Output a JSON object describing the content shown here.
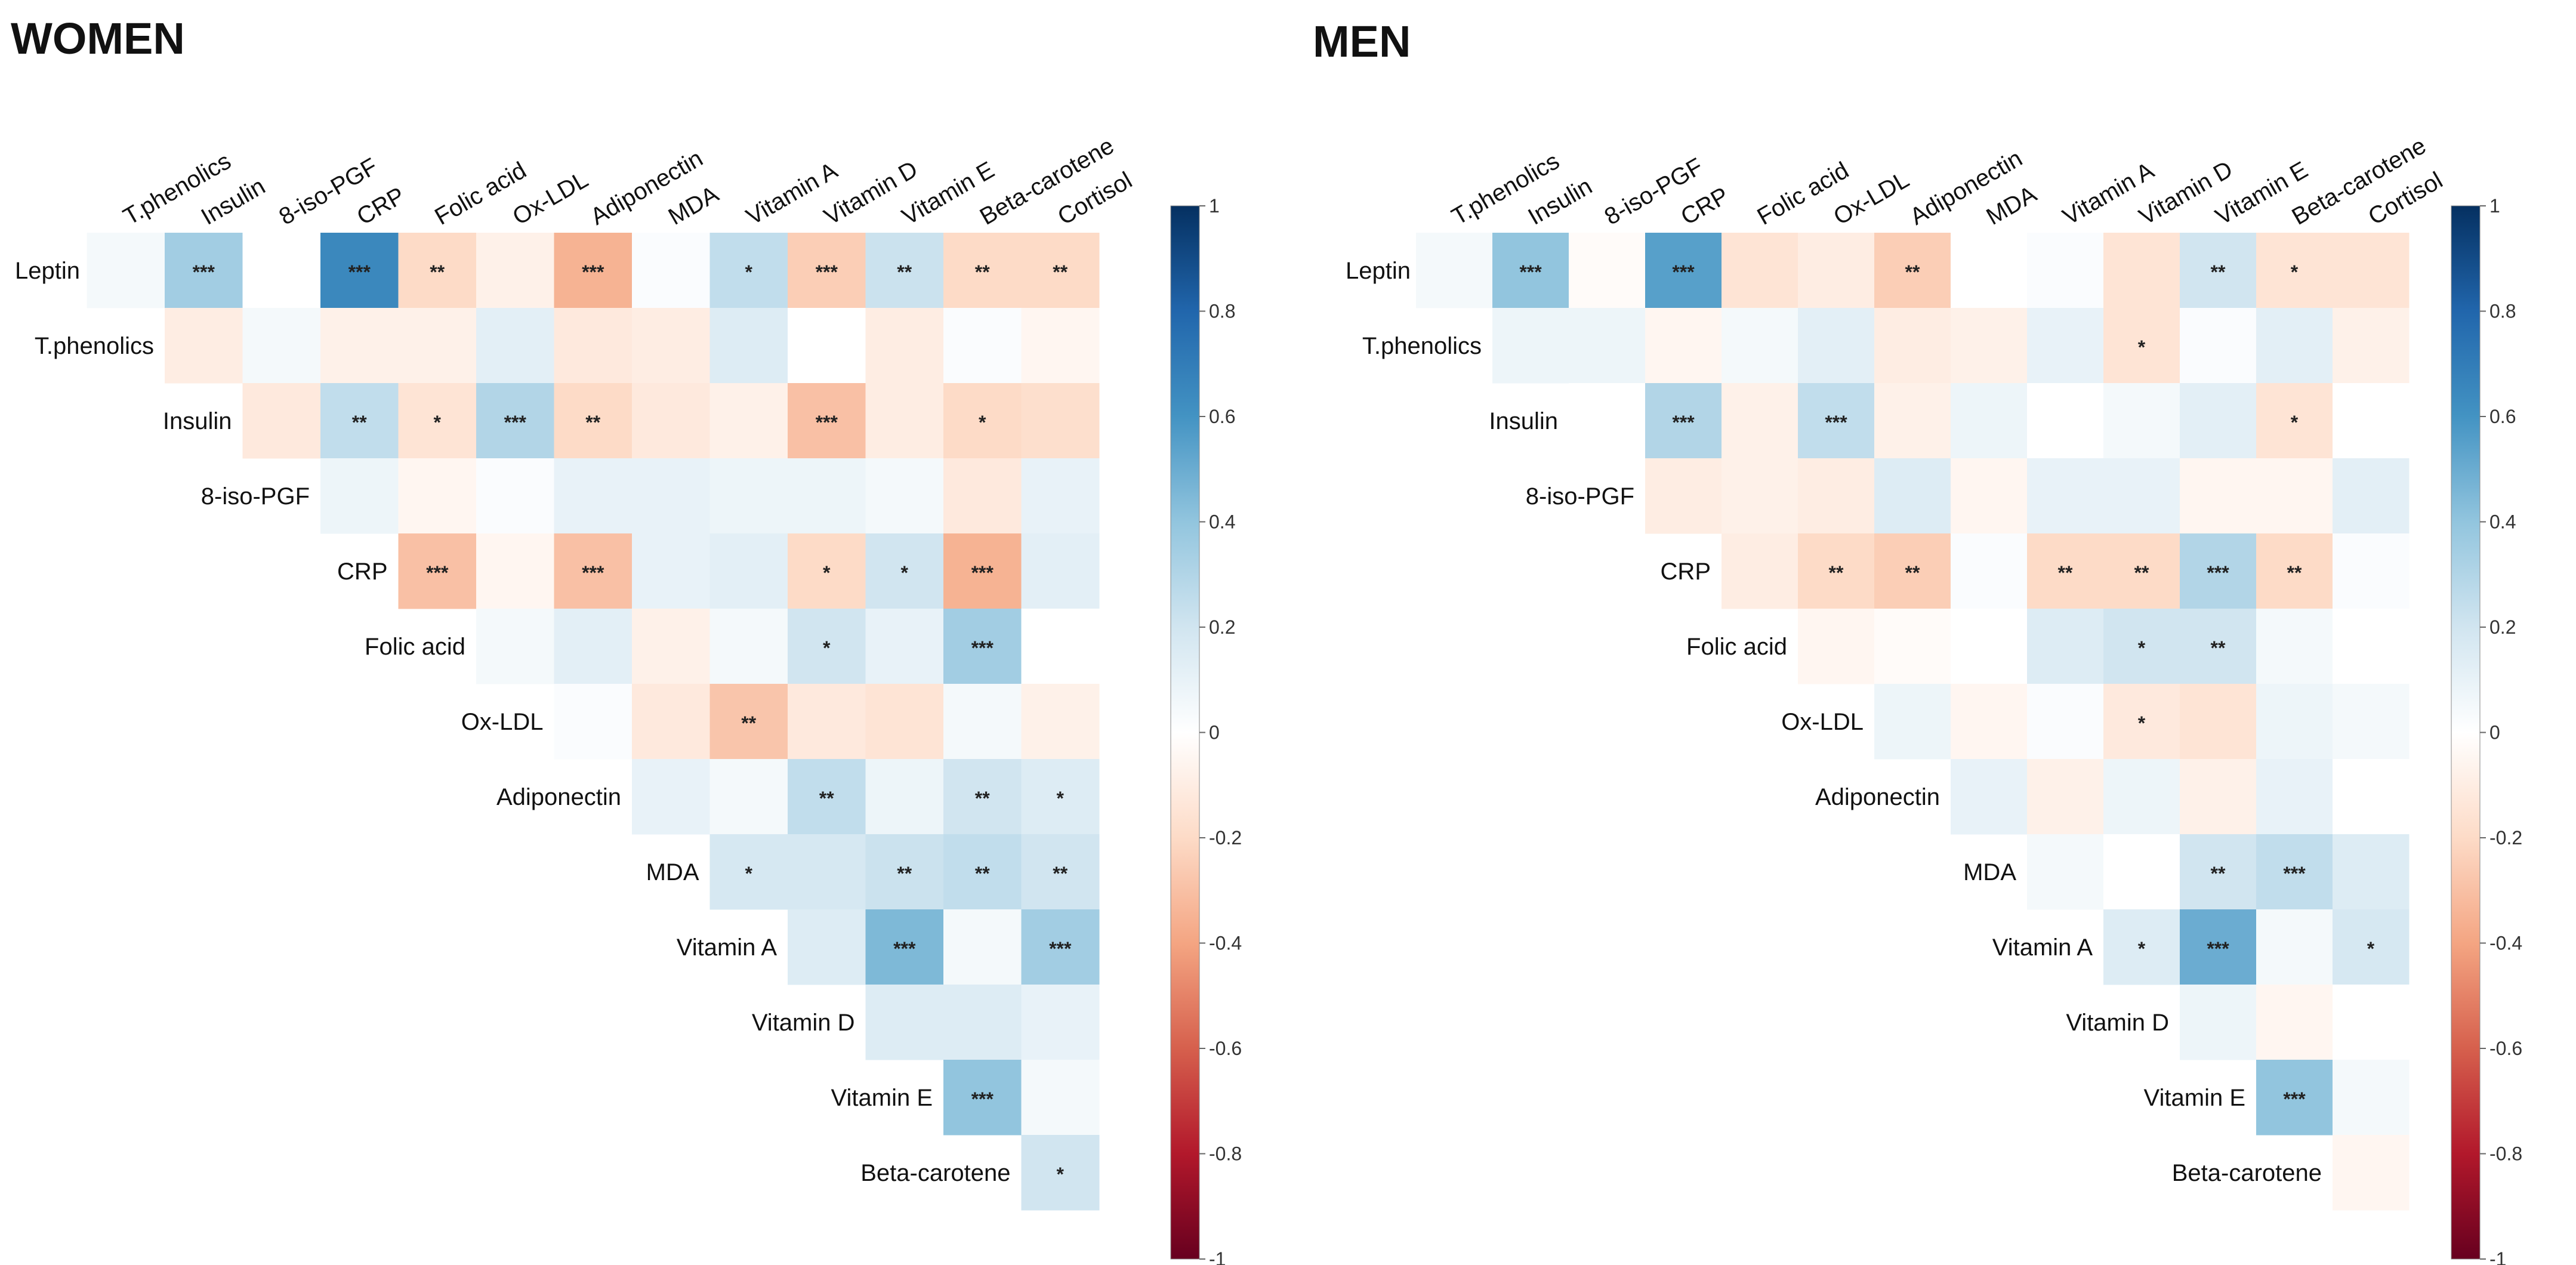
{
  "chart_data": [
    {
      "type": "heatmap",
      "title": "WOMEN",
      "rows": [
        "Leptin",
        "T.phenolics",
        "Insulin",
        "8-iso-PGF",
        "CRP",
        "Folic acid",
        "Ox-LDL",
        "Adiponectin",
        "MDA",
        "Vitamin A",
        "Vitamin D",
        "Vitamin E",
        "Beta-carotene"
      ],
      "columns": [
        "T.phenolics",
        "Insulin",
        "8-iso-PGF",
        "CRP",
        "Folic acid",
        "Ox-LDL",
        "Adiponectin",
        "MDA",
        "Vitamin A",
        "Vitamin D",
        "Vitamin E",
        "Beta-carotene",
        "Cortisol"
      ],
      "values": [
        [
          0.05,
          0.35,
          0.0,
          0.65,
          -0.2,
          -0.08,
          -0.35,
          0.02,
          0.25,
          -0.25,
          0.22,
          -0.2,
          -0.2
        ],
        [
          null,
          -0.1,
          0.05,
          -0.08,
          -0.08,
          0.12,
          -0.12,
          -0.1,
          0.15,
          0.0,
          -0.1,
          0.02,
          -0.05
        ],
        [
          null,
          null,
          -0.12,
          0.25,
          -0.15,
          0.3,
          -0.2,
          -0.12,
          -0.08,
          -0.3,
          -0.1,
          -0.2,
          -0.18
        ],
        [
          null,
          null,
          null,
          0.08,
          -0.05,
          0.02,
          0.1,
          0.1,
          0.08,
          0.08,
          0.05,
          -0.12,
          0.1
        ],
        [
          null,
          null,
          null,
          null,
          -0.3,
          -0.05,
          -0.3,
          0.1,
          0.12,
          -0.2,
          0.2,
          -0.35,
          0.12
        ],
        [
          null,
          null,
          null,
          null,
          null,
          0.05,
          0.12,
          -0.08,
          0.05,
          0.2,
          0.1,
          0.35,
          0.0
        ],
        [
          null,
          null,
          null,
          null,
          null,
          null,
          0.02,
          -0.12,
          -0.28,
          -0.12,
          -0.15,
          0.05,
          -0.08
        ],
        [
          null,
          null,
          null,
          null,
          null,
          null,
          null,
          0.1,
          0.05,
          0.25,
          0.08,
          0.2,
          0.15
        ],
        [
          null,
          null,
          null,
          null,
          null,
          null,
          null,
          null,
          0.18,
          0.18,
          0.22,
          0.25,
          0.2
        ],
        [
          null,
          null,
          null,
          null,
          null,
          null,
          null,
          null,
          null,
          0.15,
          0.45,
          0.05,
          0.35
        ],
        [
          null,
          null,
          null,
          null,
          null,
          null,
          null,
          null,
          null,
          null,
          0.15,
          0.15,
          0.1
        ],
        [
          null,
          null,
          null,
          null,
          null,
          null,
          null,
          null,
          null,
          null,
          null,
          0.4,
          0.05
        ],
        [
          null,
          null,
          null,
          null,
          null,
          null,
          null,
          null,
          null,
          null,
          null,
          null,
          0.2
        ]
      ],
      "significance": [
        [
          "",
          "***",
          "",
          "***",
          "**",
          "",
          "***",
          "",
          "*",
          "***",
          "**",
          "**",
          "**"
        ],
        [
          "",
          "",
          "",
          "",
          "",
          "",
          "",
          "",
          "",
          "",
          "",
          "",
          ""
        ],
        [
          "",
          "",
          "",
          "**",
          "*",
          "***",
          "**",
          "",
          "",
          "***",
          "",
          "*",
          ""
        ],
        [
          "",
          "",
          "",
          "",
          "",
          "",
          "",
          "",
          "",
          "",
          "",
          "",
          ""
        ],
        [
          "",
          "",
          "",
          "",
          "***",
          "",
          "***",
          "",
          "",
          "*",
          "*",
          "***",
          ""
        ],
        [
          "",
          "",
          "",
          "",
          "",
          "",
          "",
          "",
          "",
          "*",
          "",
          "***",
          ""
        ],
        [
          "",
          "",
          "",
          "",
          "",
          "",
          "",
          "",
          "**",
          "",
          "",
          "",
          ""
        ],
        [
          "",
          "",
          "",
          "",
          "",
          "",
          "",
          "",
          "",
          "**",
          "",
          "**",
          "*"
        ],
        [
          "",
          "",
          "",
          "",
          "",
          "",
          "",
          "",
          "*",
          "",
          "**",
          "**",
          "**"
        ],
        [
          "",
          "",
          "",
          "",
          "",
          "",
          "",
          "",
          "",
          "",
          "***",
          "",
          "***"
        ],
        [
          "",
          "",
          "",
          "",
          "",
          "",
          "",
          "",
          "",
          "",
          "",
          "",
          ""
        ],
        [
          "",
          "",
          "",
          "",
          "",
          "",
          "",
          "",
          "",
          "",
          "",
          "***",
          ""
        ],
        [
          "",
          "",
          "",
          "",
          "",
          "",
          "",
          "",
          "",
          "",
          "",
          "",
          "*"
        ]
      ],
      "color_scale": {
        "min": -1,
        "max": 1,
        "ticks": [
          "1",
          "0.8",
          "0.6",
          "0.4",
          "0.2",
          "0",
          "-0.2",
          "-0.4",
          "-0.6",
          "-0.8",
          "-1"
        ]
      }
    },
    {
      "type": "heatmap",
      "title": "MEN",
      "rows": [
        "Leptin",
        "T.phenolics",
        "Insulin",
        "8-iso-PGF",
        "CRP",
        "Folic acid",
        "Ox-LDL",
        "Adiponectin",
        "MDA",
        "Vitamin A",
        "Vitamin D",
        "Vitamin E",
        "Beta-carotene"
      ],
      "columns": [
        "T.phenolics",
        "Insulin",
        "8-iso-PGF",
        "CRP",
        "Folic acid",
        "Ox-LDL",
        "Adiponectin",
        "MDA",
        "Vitamin A",
        "Vitamin D",
        "Vitamin E",
        "Beta-carotene",
        "Cortisol"
      ],
      "values": [
        [
          0.05,
          0.4,
          -0.02,
          0.55,
          -0.15,
          -0.1,
          -0.25,
          0.0,
          0.02,
          -0.15,
          0.2,
          -0.15,
          -0.15
        ],
        [
          null,
          0.08,
          0.08,
          -0.05,
          0.05,
          0.12,
          -0.1,
          -0.08,
          0.1,
          -0.15,
          0.02,
          0.12,
          -0.08
        ],
        [
          null,
          null,
          0.0,
          0.3,
          -0.08,
          0.25,
          -0.08,
          0.08,
          0.0,
          0.05,
          0.12,
          -0.15,
          0.0
        ],
        [
          null,
          null,
          null,
          -0.1,
          -0.08,
          -0.1,
          0.15,
          -0.05,
          0.1,
          0.1,
          -0.05,
          -0.05,
          0.12
        ],
        [
          null,
          null,
          null,
          null,
          -0.1,
          -0.2,
          -0.25,
          0.02,
          -0.2,
          -0.2,
          0.3,
          -0.2,
          0.02
        ],
        [
          null,
          null,
          null,
          null,
          null,
          -0.05,
          -0.02,
          0.0,
          0.15,
          0.2,
          0.2,
          0.05,
          0.0
        ],
        [
          null,
          null,
          null,
          null,
          null,
          null,
          0.08,
          -0.05,
          0.02,
          -0.12,
          -0.15,
          0.08,
          0.05
        ],
        [
          null,
          null,
          null,
          null,
          null,
          null,
          null,
          0.1,
          -0.08,
          0.08,
          -0.08,
          0.1,
          0.0
        ],
        [
          null,
          null,
          null,
          null,
          null,
          null,
          null,
          null,
          0.05,
          0.0,
          0.2,
          0.25,
          0.15
        ],
        [
          null,
          null,
          null,
          null,
          null,
          null,
          null,
          null,
          null,
          0.15,
          0.5,
          0.05,
          0.18
        ],
        [
          null,
          null,
          null,
          null,
          null,
          null,
          null,
          null,
          null,
          null,
          0.08,
          -0.05,
          0.0
        ],
        [
          null,
          null,
          null,
          null,
          null,
          null,
          null,
          null,
          null,
          null,
          null,
          0.4,
          0.05
        ],
        [
          null,
          null,
          null,
          null,
          null,
          null,
          null,
          null,
          null,
          null,
          null,
          null,
          -0.05
        ]
      ],
      "significance": [
        [
          "",
          "***",
          "",
          "***",
          "",
          "",
          "**",
          "",
          "",
          "",
          "**",
          "*",
          ""
        ],
        [
          "",
          "",
          "",
          "",
          "",
          "",
          "",
          "",
          "",
          "*",
          "",
          "",
          ""
        ],
        [
          "",
          "",
          "",
          "***",
          "",
          "***",
          "",
          "",
          "",
          "",
          "",
          "*",
          ""
        ],
        [
          "",
          "",
          "",
          "",
          "",
          "",
          "",
          "",
          "",
          "",
          "",
          "",
          ""
        ],
        [
          "",
          "",
          "",
          "",
          "",
          "**",
          "**",
          "",
          "**",
          "**",
          "***",
          "**",
          ""
        ],
        [
          "",
          "",
          "",
          "",
          "",
          "",
          "",
          "",
          "",
          "*",
          "**",
          "",
          ""
        ],
        [
          "",
          "",
          "",
          "",
          "",
          "",
          "",
          "",
          "",
          "*",
          "",
          "",
          ""
        ],
        [
          "",
          "",
          "",
          "",
          "",
          "",
          "",
          "",
          "",
          "",
          "",
          "",
          ""
        ],
        [
          "",
          "",
          "",
          "",
          "",
          "",
          "",
          "",
          "",
          "",
          "**",
          "***",
          ""
        ],
        [
          "",
          "",
          "",
          "",
          "",
          "",
          "",
          "",
          "",
          "*",
          "***",
          "",
          "*"
        ],
        [
          "",
          "",
          "",
          "",
          "",
          "",
          "",
          "",
          "",
          "",
          "",
          "",
          ""
        ],
        [
          "",
          "",
          "",
          "",
          "",
          "",
          "",
          "",
          "",
          "",
          "",
          "***",
          ""
        ],
        [
          "",
          "",
          "",
          "",
          "",
          "",
          "",
          "",
          "",
          "",
          "",
          "",
          ""
        ]
      ],
      "color_scale": {
        "min": -1,
        "max": 1,
        "ticks": [
          "1",
          "0.8",
          "0.6",
          "0.4",
          "0.2",
          "0",
          "-0.2",
          "-0.4",
          "-0.6",
          "-0.8",
          "-1"
        ]
      }
    }
  ]
}
